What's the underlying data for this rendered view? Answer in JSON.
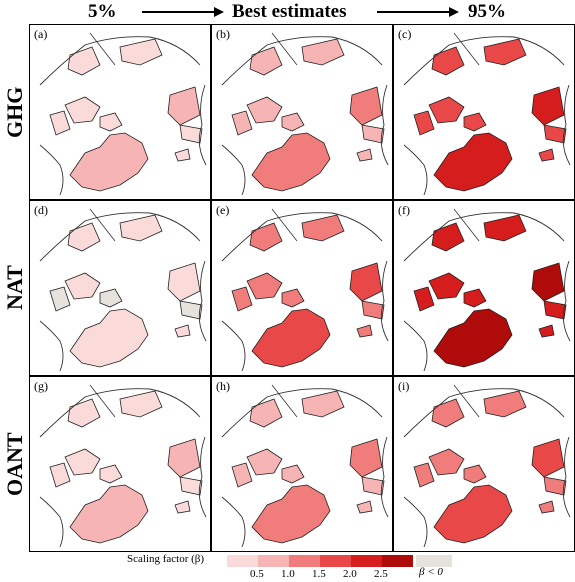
{
  "header": {
    "left": "5%",
    "middle": "Best estimates",
    "right": "95%"
  },
  "rows": [
    {
      "label": "GHG",
      "panels": [
        {
          "label": "(a)",
          "intensity": 0.5
        },
        {
          "label": "(b)",
          "intensity": 1.1
        },
        {
          "label": "(c)",
          "intensity": 2.2
        }
      ]
    },
    {
      "label": "NAT",
      "panels": [
        {
          "label": "(d)",
          "intensity": 0.3
        },
        {
          "label": "(e)",
          "intensity": 1.7
        },
        {
          "label": "(f)",
          "intensity": 2.6
        }
      ]
    },
    {
      "label": "OANT",
      "panels": [
        {
          "label": "(g)",
          "intensity": 0.9
        },
        {
          "label": "(h)",
          "intensity": 1.2
        },
        {
          "label": "(i)",
          "intensity": 1.6
        }
      ]
    }
  ],
  "legend": {
    "title": "Scaling factor (β)",
    "ticks": [
      "0.5",
      "1.0",
      "1.5",
      "2.0",
      "2.5"
    ],
    "colors": [
      "#fbdada",
      "#f7b4b4",
      "#f07c7c",
      "#e94848",
      "#d61d1d",
      "#b00b0b"
    ],
    "negative_color": "#e6e3dc",
    "negative_label": "β < 0"
  }
}
